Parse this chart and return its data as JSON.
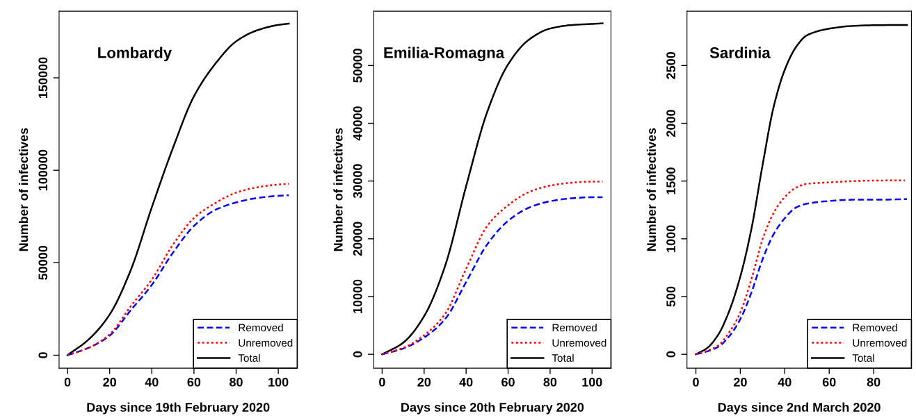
{
  "chart_data": [
    {
      "type": "line",
      "title": "Lombardy",
      "xlabel": "Days since 19th February 2020",
      "ylabel": "Number of infectives",
      "xlim": [
        -4,
        109
      ],
      "xticks": [
        0,
        20,
        40,
        60,
        80,
        100
      ],
      "ylim": [
        -7000,
        186000
      ],
      "yticks": [
        0,
        50000,
        100000,
        150000
      ],
      "legend": "bottom right",
      "grid": false,
      "series": [
        {
          "name": "Removed",
          "color": "#0000ff",
          "line_style": "dashed",
          "x": [
            0,
            10,
            20,
            30,
            40,
            50,
            60,
            70,
            80,
            90,
            100,
            105
          ],
          "values": [
            0,
            4000,
            10600,
            24300,
            38000,
            55400,
            69900,
            78500,
            82600,
            85000,
            86200,
            86500
          ]
        },
        {
          "name": "Unremoved",
          "color": "#ff0000",
          "line_style": "dotted",
          "x": [
            0,
            10,
            20,
            30,
            40,
            50,
            60,
            70,
            80,
            90,
            100,
            105
          ],
          "values": [
            0,
            4000,
            11300,
            26500,
            40900,
            59700,
            74200,
            82200,
            87900,
            90800,
            92300,
            92700
          ]
        },
        {
          "name": "Total",
          "color": "#000000",
          "line_style": "solid",
          "x": [
            0,
            10,
            20,
            30,
            40,
            50,
            60,
            70,
            80,
            90,
            100,
            105
          ],
          "values": [
            0,
            8500,
            22000,
            46000,
            80000,
            112000,
            140000,
            157400,
            169700,
            175700,
            178600,
            179300
          ]
        }
      ]
    },
    {
      "type": "line",
      "title": "Emilia-Romagna",
      "xlabel": "Days since 20th February 2020",
      "ylabel": "Number of infectives",
      "xlim": [
        -4,
        109
      ],
      "xticks": [
        0,
        20,
        40,
        60,
        80,
        100
      ],
      "ylim": [
        -2400,
        59400
      ],
      "yticks": [
        0,
        10000,
        20000,
        30000,
        40000,
        50000
      ],
      "legend": "bottom right",
      "grid": false,
      "series": [
        {
          "name": "Removed",
          "color": "#0000ff",
          "line_style": "dashed",
          "x": [
            0,
            10,
            20,
            30,
            40,
            50,
            60,
            70,
            80,
            90,
            100,
            105
          ],
          "values": [
            0,
            1000,
            2900,
            6100,
            12500,
            19000,
            23100,
            25400,
            26500,
            27000,
            27200,
            27200
          ]
        },
        {
          "name": "Unremoved",
          "color": "#ff0000",
          "line_style": "dotted",
          "x": [
            0,
            10,
            20,
            30,
            40,
            50,
            60,
            70,
            80,
            90,
            100,
            105
          ],
          "values": [
            0,
            1100,
            3300,
            7000,
            14800,
            22200,
            25800,
            28100,
            29200,
            29700,
            29900,
            29900
          ]
        },
        {
          "name": "Total",
          "color": "#000000",
          "line_style": "solid",
          "x": [
            0,
            10,
            20,
            30,
            40,
            50,
            60,
            70,
            80,
            90,
            100,
            105
          ],
          "values": [
            0,
            2000,
            6600,
            15300,
            29100,
            41900,
            50200,
            54500,
            56400,
            57000,
            57200,
            57300
          ]
        }
      ]
    },
    {
      "type": "line",
      "title": "Sardinia",
      "xlabel": "Days since 2nd March 2020",
      "ylabel": "Number of infectives",
      "xlim": [
        -4,
        97
      ],
      "xticks": [
        0,
        20,
        40,
        60,
        80
      ],
      "ylim": [
        -120,
        2970
      ],
      "yticks": [
        0,
        500,
        1000,
        1500,
        2000,
        2500
      ],
      "legend": "bottom right",
      "grid": false,
      "series": [
        {
          "name": "Removed",
          "color": "#0000ff",
          "line_style": "dashed",
          "x": [
            0,
            5,
            10,
            15,
            20,
            25,
            30,
            35,
            40,
            45,
            50,
            60,
            70,
            80,
            95
          ],
          "values": [
            0,
            25,
            64,
            156,
            305,
            535,
            822,
            1040,
            1178,
            1270,
            1304,
            1327,
            1338,
            1338,
            1343
          ]
        },
        {
          "name": "Unremoved",
          "color": "#ff0000",
          "line_style": "dotted",
          "x": [
            0,
            5,
            10,
            15,
            20,
            25,
            30,
            35,
            40,
            45,
            50,
            60,
            70,
            80,
            94
          ],
          "values": [
            0,
            30,
            76,
            190,
            363,
            650,
            994,
            1224,
            1361,
            1442,
            1476,
            1488,
            1499,
            1504,
            1506
          ]
        },
        {
          "name": "Total",
          "color": "#000000",
          "line_style": "solid",
          "x": [
            0,
            5,
            10,
            15,
            20,
            25,
            30,
            35,
            40,
            45,
            50,
            60,
            70,
            80,
            95
          ],
          "values": [
            0,
            53,
            168,
            374,
            673,
            1086,
            1637,
            2142,
            2463,
            2658,
            2762,
            2819,
            2842,
            2849,
            2851
          ]
        }
      ]
    }
  ]
}
